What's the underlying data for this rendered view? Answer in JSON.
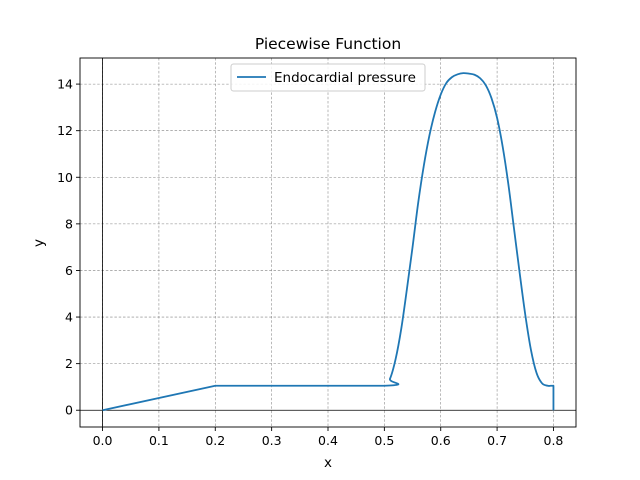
{
  "chart_data": {
    "type": "line",
    "title": "Piecewise Function",
    "xlabel": "x",
    "ylabel": "y",
    "xlim": [
      -0.04,
      0.84
    ],
    "ylim": [
      -0.72,
      15.12
    ],
    "xticks": [
      0.0,
      0.1,
      0.2,
      0.3,
      0.4,
      0.5,
      0.6,
      0.7,
      0.8
    ],
    "xtick_labels": [
      "0.0",
      "0.1",
      "0.2",
      "0.3",
      "0.4",
      "0.5",
      "0.6",
      "0.7",
      "0.8"
    ],
    "yticks": [
      0,
      2,
      4,
      6,
      8,
      10,
      12,
      14
    ],
    "ytick_labels": [
      "0",
      "2",
      "4",
      "6",
      "8",
      "10",
      "12",
      "14"
    ],
    "grid": true,
    "legend_position": "upper center",
    "series": [
      {
        "name": "Endocardial pressure",
        "color": "#1f77b4",
        "x": [
          0.0,
          0.2,
          0.5,
          0.51,
          0.52,
          0.53,
          0.54,
          0.55,
          0.56,
          0.57,
          0.58,
          0.59,
          0.6,
          0.61,
          0.62,
          0.63,
          0.64,
          0.65,
          0.66,
          0.67,
          0.68,
          0.69,
          0.7,
          0.71,
          0.72,
          0.73,
          0.74,
          0.75,
          0.76,
          0.77,
          0.78,
          0.79,
          0.795,
          0.8,
          0.8
        ],
        "y": [
          0.0,
          1.05,
          1.05,
          1.35,
          2.2,
          3.5,
          5.2,
          7.0,
          8.9,
          10.5,
          11.8,
          12.8,
          13.55,
          14.05,
          14.3,
          14.42,
          14.47,
          14.45,
          14.4,
          14.25,
          13.95,
          13.4,
          12.55,
          11.3,
          9.7,
          7.8,
          5.9,
          4.1,
          2.6,
          1.6,
          1.15,
          1.05,
          1.05,
          1.05,
          0.0
        ]
      }
    ]
  }
}
